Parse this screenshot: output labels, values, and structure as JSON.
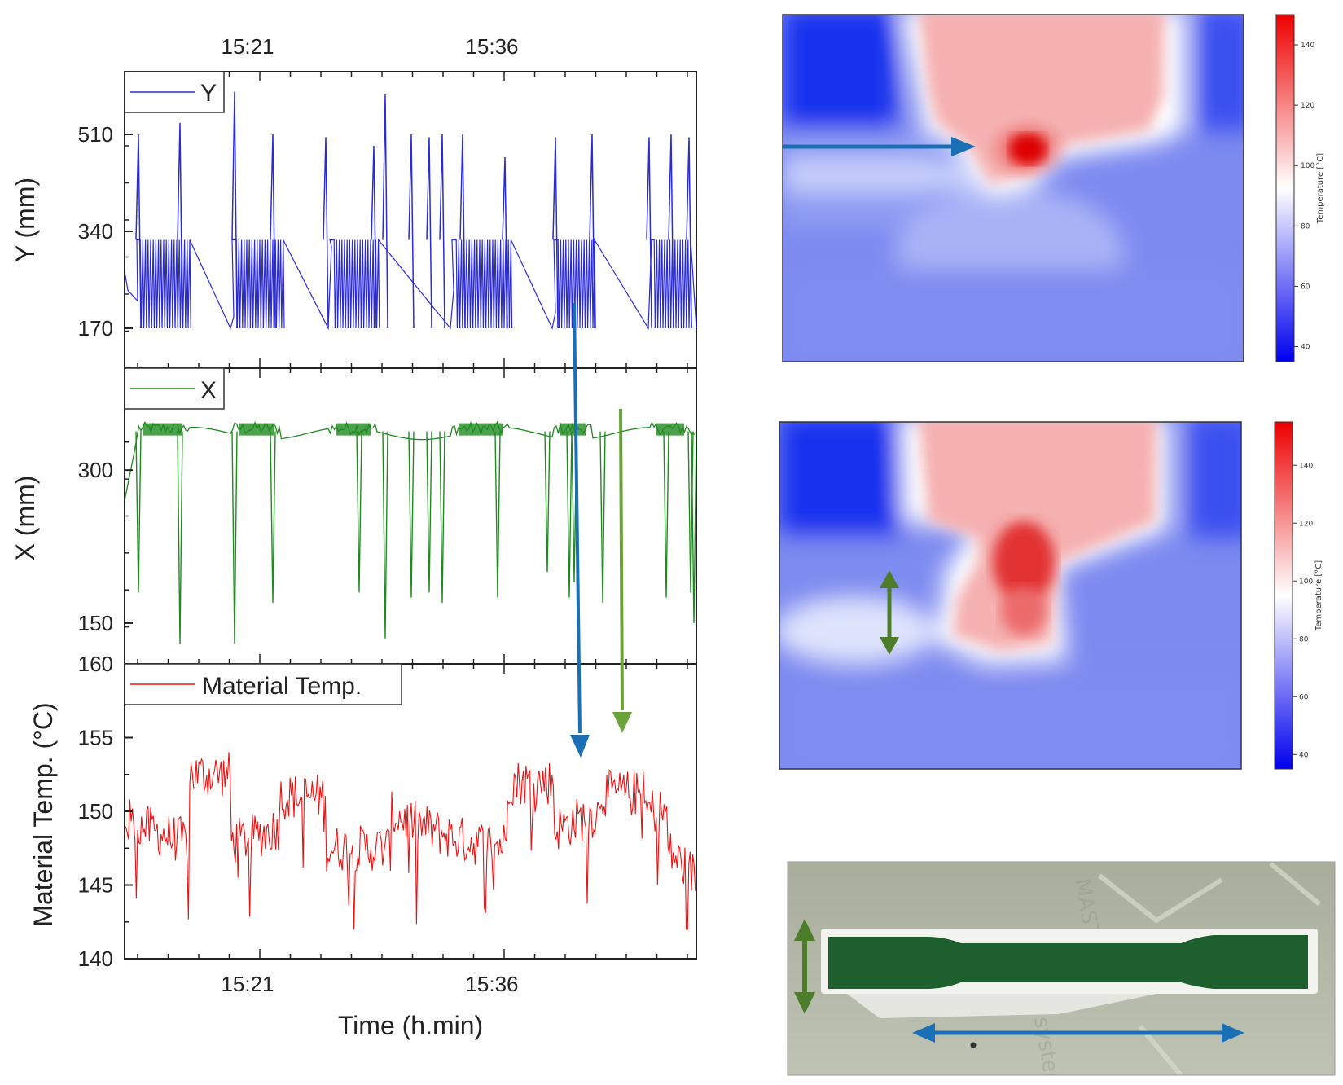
{
  "chart_data": [
    {
      "type": "line",
      "panel": "top",
      "ylabel": "Y (mm)",
      "ylim": [
        100,
        620
      ],
      "yticks": [
        170,
        340,
        510
      ],
      "legend": {
        "label": "Y",
        "placement": "top-left"
      },
      "top_axis_ticks": [
        "15:21",
        "15:36"
      ],
      "color": "#2b2bd6",
      "series": [
        {
          "name": "Y",
          "baseline_range": [
            170,
            325
          ],
          "peaks": [
            510,
            530,
            585,
            510,
            505,
            490,
            580,
            510,
            505,
            510,
            510,
            470,
            505,
            510,
            505,
            510,
            505
          ]
        }
      ]
    },
    {
      "type": "line",
      "panel": "middle",
      "ylabel": "X (mm)",
      "ylim": [
        110,
        400
      ],
      "yticks": [
        150,
        300
      ],
      "legend": {
        "label": "X",
        "placement": "top-left"
      },
      "color": "#1f8a1f",
      "series": [
        {
          "name": "X",
          "baseline_range": [
            335,
            345
          ],
          "dips": [
            180,
            130,
            130,
            170,
            180,
            135,
            175,
            180,
            170,
            175,
            200,
            175,
            190,
            170,
            175,
            180,
            150
          ]
        }
      ]
    },
    {
      "type": "line",
      "panel": "bottom",
      "ylabel": "Material Temp. (°C)",
      "xlabel": "Time (h.min)",
      "ylim": [
        140,
        160
      ],
      "yticks": [
        140,
        145,
        150,
        155,
        160
      ],
      "xticks": [
        "15:21",
        "15:36"
      ],
      "legend": {
        "label": "Material Temp.",
        "placement": "top-left"
      },
      "color": "#ee1111",
      "series": [
        {
          "name": "Material Temp.",
          "mean_range": [
            147,
            154
          ],
          "min": 142,
          "max": 154.5
        }
      ]
    },
    {
      "type": "heatmap",
      "panel": "thermal-1",
      "colorbar": {
        "title": "Temperature [°C]",
        "ticks": [
          40,
          60,
          80,
          100,
          120,
          140
        ],
        "range": [
          35,
          150
        ]
      }
    },
    {
      "type": "heatmap",
      "panel": "thermal-2",
      "colorbar": {
        "title": "Temperature [°C]",
        "ticks": [
          40,
          60,
          80,
          100,
          120,
          140
        ],
        "range": [
          35,
          155
        ]
      }
    }
  ],
  "colors": {
    "blue_arrow": "#1b6fb5",
    "green_arrow": "#5a8a2c",
    "specimen": "#1e5f2e"
  }
}
